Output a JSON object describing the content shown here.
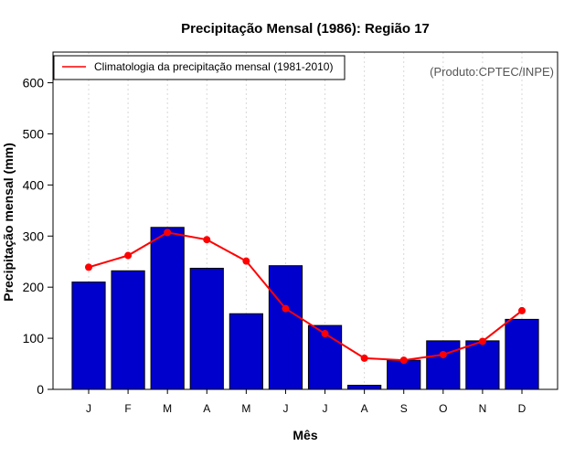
{
  "chart_data": {
    "type": "bar",
    "title": "Precipitação Mensal (1986): Região 17",
    "xlabel": "Mês",
    "ylabel": "Precipitação mensal (mm)",
    "ylim": [
      0,
      660
    ],
    "yticks": [
      0,
      100,
      200,
      300,
      400,
      500,
      600
    ],
    "categories": [
      "J",
      "F",
      "M",
      "A",
      "M",
      "J",
      "J",
      "A",
      "S",
      "O",
      "N",
      "D"
    ],
    "series": [
      {
        "name": "Precipitação mensal (1986)",
        "type": "bar",
        "color": "#0000cd",
        "values": [
          210,
          232,
          317,
          237,
          148,
          242,
          125,
          8,
          57,
          95,
          95,
          137
        ]
      },
      {
        "name": "Climatologia da precipitação mensal (1981-2010)",
        "type": "line",
        "color": "#ff0000",
        "values": [
          239,
          262,
          307,
          293,
          251,
          158,
          109,
          61,
          57,
          68,
          94,
          154
        ]
      }
    ],
    "legend": {
      "position": "top-left",
      "entries": [
        "Climatologia da precipitação mensal (1981-2010)"
      ]
    },
    "annotation": "(Produto:CPTEC/INPE)",
    "grid": {
      "vertical": true,
      "horizontal": false
    }
  }
}
